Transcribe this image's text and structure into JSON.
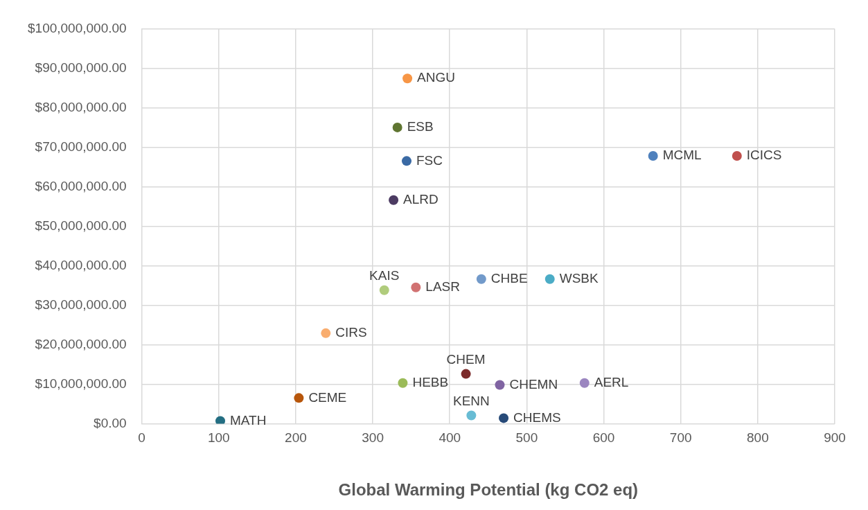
{
  "chart_data": {
    "type": "scatter",
    "xlabel": "Global Warming Potential (kg CO2 eq)",
    "x": [
      345,
      332,
      344,
      327,
      664,
      773,
      315,
      356,
      441,
      530,
      239,
      339,
      421,
      465,
      575,
      204,
      428,
      470,
      102
    ],
    "values": [
      87400000,
      75000000,
      66500000,
      56600000,
      67800000,
      67800000,
      33800000,
      34500000,
      36600000,
      36600000,
      22900000,
      10300000,
      12600000,
      9800000,
      10300000,
      6500000,
      2100000,
      1400000,
      700000
    ],
    "colors": [
      "#f79646",
      "#5f7531",
      "#3a6aa4",
      "#4c3b62",
      "#4f81bd",
      "#c0504d",
      "#b0cc7c",
      "#d17272",
      "#729aca",
      "#4bacc6",
      "#f9ad6e",
      "#9bbb59",
      "#7b2a2a",
      "#8064a2",
      "#9b86c0",
      "#b7560b",
      "#68bcd4",
      "#274a78",
      "#236e82"
    ],
    "annotations": [
      {
        "text": "ANGU",
        "x": 345,
        "y": 87400000
      },
      {
        "text": "ESB",
        "x": 332,
        "y": 75000000
      },
      {
        "text": "FSC",
        "x": 344,
        "y": 66500000
      },
      {
        "text": "ALRD",
        "x": 327,
        "y": 56600000
      },
      {
        "text": "MCML",
        "x": 664,
        "y": 67800000
      },
      {
        "text": "ICICS",
        "x": 773,
        "y": 67800000
      },
      {
        "text": "KAIS",
        "x": 315,
        "y": 33800000
      },
      {
        "text": "LASR",
        "x": 356,
        "y": 34500000
      },
      {
        "text": "CHBE",
        "x": 441,
        "y": 36600000
      },
      {
        "text": "WSBK",
        "x": 530,
        "y": 36600000
      },
      {
        "text": "CIRS",
        "x": 239,
        "y": 22900000
      },
      {
        "text": "HEBB",
        "x": 339,
        "y": 10300000
      },
      {
        "text": "CHEM",
        "x": 421,
        "y": 12600000
      },
      {
        "text": "CHEMN",
        "x": 465,
        "y": 9800000
      },
      {
        "text": "AERL",
        "x": 575,
        "y": 10300000
      },
      {
        "text": "CEME",
        "x": 204,
        "y": 6500000
      },
      {
        "text": "KENN",
        "x": 428,
        "y": 2100000
      },
      {
        "text": "CHEMS",
        "x": 470,
        "y": 1400000
      },
      {
        "text": "MATH",
        "x": 102,
        "y": 700000
      }
    ],
    "xlim": [
      0,
      900
    ],
    "xticks": [
      0,
      100,
      200,
      300,
      400,
      500,
      600,
      700,
      800,
      900
    ],
    "ylim": [
      0,
      100000000
    ],
    "yticks": [
      {
        "value": 0,
        "label": "$0.00"
      },
      {
        "value": 10000000,
        "label": "$10,000,000.00"
      },
      {
        "value": 20000000,
        "label": "$20,000,000.00"
      },
      {
        "value": 30000000,
        "label": "$30,000,000.00"
      },
      {
        "value": 40000000,
        "label": "$40,000,000.00"
      },
      {
        "value": 50000000,
        "label": "$50,000,000.00"
      },
      {
        "value": 60000000,
        "label": "$60,000,000.00"
      },
      {
        "value": 70000000,
        "label": "$70,000,000.00"
      },
      {
        "value": 80000000,
        "label": "$80,000,000.00"
      },
      {
        "value": 90000000,
        "label": "$90,000,000.00"
      },
      {
        "value": 100000000,
        "label": "$100,000,000.00"
      }
    ],
    "grid": true,
    "marker": "circle",
    "legend": false
  }
}
